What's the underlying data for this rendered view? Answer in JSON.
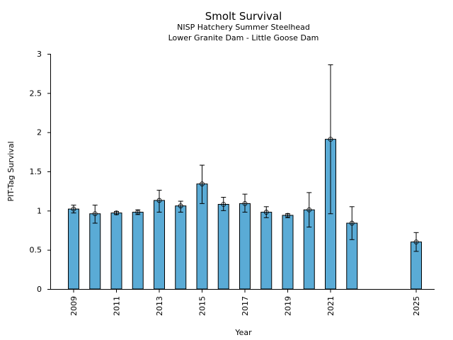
{
  "chart_data": {
    "type": "bar",
    "title": "Smolt Survival",
    "subtitles": [
      "NISP Hatchery Summer Steelhead",
      "Lower Granite Dam - Little Goose Dam"
    ],
    "xlabel": "Year",
    "ylabel": "PIT-Tag Survival",
    "ylim": [
      0,
      3
    ],
    "xlim": [
      2008.1,
      2026
    ],
    "yticks": [
      0,
      0.5,
      1,
      1.5,
      2,
      2.5,
      3
    ],
    "ytick_labels": [
      "0",
      "0.5",
      "1",
      "1.5",
      "2",
      "2.5",
      "3"
    ],
    "xticks": [
      2009,
      2011,
      2013,
      2015,
      2017,
      2019,
      2021,
      2025
    ],
    "xtick_labels": [
      "2009",
      "2011",
      "2013",
      "2015",
      "2017",
      "2019",
      "2021",
      "2025"
    ],
    "grid": false,
    "bar_color": "#5aabd6",
    "series": [
      {
        "name": "PIT-Tag Survival",
        "x": [
          2009,
          2010,
          2011,
          2012,
          2013,
          2014,
          2015,
          2016,
          2017,
          2018,
          2019,
          2020,
          2021,
          2022,
          2025
        ],
        "values": [
          1.02,
          0.96,
          0.97,
          0.98,
          1.13,
          1.06,
          1.34,
          1.08,
          1.09,
          0.98,
          0.94,
          1.01,
          1.91,
          0.84,
          0.6
        ],
        "err_low": [
          0.97,
          0.84,
          0.95,
          0.95,
          0.98,
          0.98,
          1.09,
          1.0,
          0.98,
          0.91,
          0.91,
          0.79,
          0.96,
          0.63,
          0.48
        ],
        "err_high": [
          1.07,
          1.07,
          0.99,
          1.01,
          1.26,
          1.12,
          1.58,
          1.17,
          1.21,
          1.05,
          0.96,
          1.23,
          2.86,
          1.05,
          0.72
        ]
      }
    ]
  }
}
